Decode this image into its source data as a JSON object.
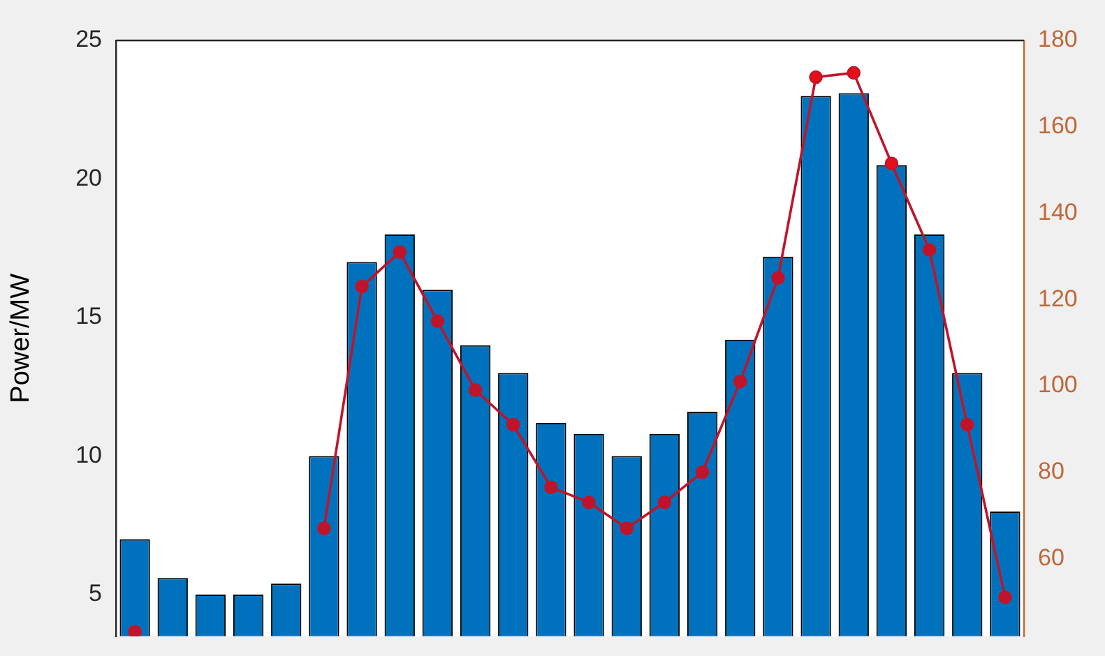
{
  "chart_data": {
    "type": "bar",
    "ylabel": "Power/MW",
    "categories": [
      null,
      null,
      null,
      null,
      null,
      null,
      null,
      null,
      null,
      null,
      null,
      null,
      null,
      null,
      null,
      null,
      null,
      null,
      null,
      null,
      null,
      null,
      null,
      null
    ],
    "series": [
      {
        "color": "#0072bd",
        "values": [
          7.0,
          5.6,
          5.0,
          5.0,
          5.4,
          10.0,
          17.0,
          18.0,
          16.0,
          14.0,
          13.0,
          11.2,
          10.8,
          10.0,
          10.8,
          11.6,
          14.2,
          17.2,
          23.0,
          23.1,
          20.5,
          18.0,
          13.0,
          8.0
        ]
      },
      {
        "type": "line",
        "axis": "y2",
        "color": "#c0142a",
        "marker": "circle",
        "line_style": "solid",
        "values": [
          null,
          null,
          null,
          null,
          null,
          67,
          123,
          131,
          115,
          99,
          91,
          76.5,
          73,
          67,
          73,
          80,
          101,
          125,
          171.5,
          172.5,
          151.5,
          131.5,
          91,
          51
        ]
      },
      {
        "type": "scatter",
        "axis": "y2",
        "color": "#c0142a",
        "marker": "circle",
        "values": [
          43,
          null,
          null,
          null,
          null,
          null,
          null,
          null,
          null,
          null,
          null,
          null,
          null,
          null,
          null,
          null,
          null,
          null,
          null,
          null,
          null,
          null,
          null,
          null
        ]
      },
      {
        "type": "scatter",
        "axis": "y2",
        "color": "#e3101a",
        "marker": "cross",
        "values": [
          null,
          null,
          null,
          null,
          null,
          null,
          null,
          null,
          null,
          null,
          null,
          null,
          null,
          null,
          null,
          null,
          null,
          null,
          171.5,
          172.5,
          151.5,
          null,
          null,
          null
        ]
      }
    ],
    "ylim": [
      3.5,
      25
    ],
    "yticks": [
      5,
      10,
      15,
      20,
      25
    ],
    "y2lim": [
      42,
      180
    ],
    "y2ticks": [
      60,
      80,
      100,
      120,
      140,
      160,
      180
    ],
    "grid": false,
    "legend": false
  }
}
